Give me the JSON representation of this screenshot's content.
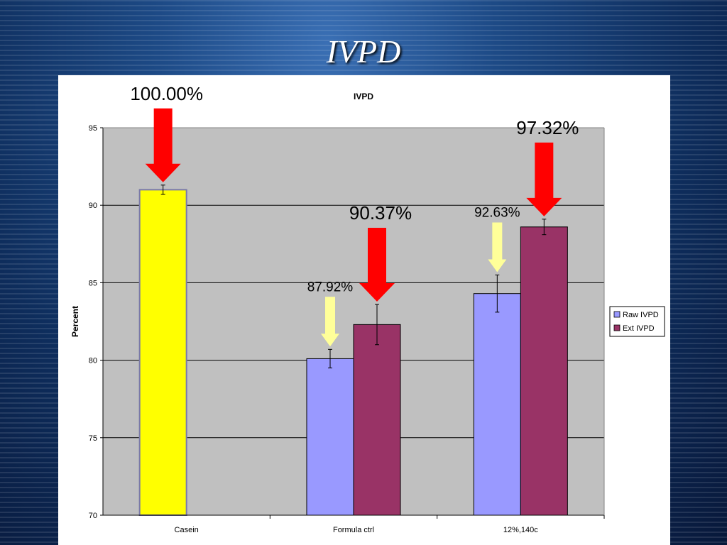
{
  "slide": {
    "title": "IVPD"
  },
  "chart_data": {
    "type": "bar",
    "title": "IVPD",
    "xlabel": "",
    "ylabel": "Percent",
    "ylim": [
      70,
      95
    ],
    "yticks": [
      70,
      75,
      80,
      85,
      90,
      95
    ],
    "grid": true,
    "legend_position": "right",
    "categories": [
      "Casein",
      "Formula ctrl",
      "12%,140c"
    ],
    "series": [
      {
        "name": "Raw IVPD",
        "color": "#9999ff",
        "values": [
          91.0,
          80.1,
          84.3
        ],
        "error": [
          0.3,
          0.6,
          1.2
        ]
      },
      {
        "name": "Ext IVPD",
        "color": "#993366",
        "values": [
          null,
          82.3,
          88.6
        ],
        "error": [
          null,
          1.3,
          0.5
        ]
      }
    ],
    "highlight_color": "#ffff00",
    "annotations": [
      {
        "text": "100.00%",
        "arrow": "red"
      },
      {
        "text": "87.92%",
        "arrow": "yellow"
      },
      {
        "text": "90.37%",
        "arrow": "red"
      },
      {
        "text": "92.63%",
        "arrow": "yellow"
      },
      {
        "text": "97.32%",
        "arrow": "red"
      }
    ],
    "arrow_colors": {
      "red": "#ff0000",
      "yellow": "#ffff99"
    }
  }
}
